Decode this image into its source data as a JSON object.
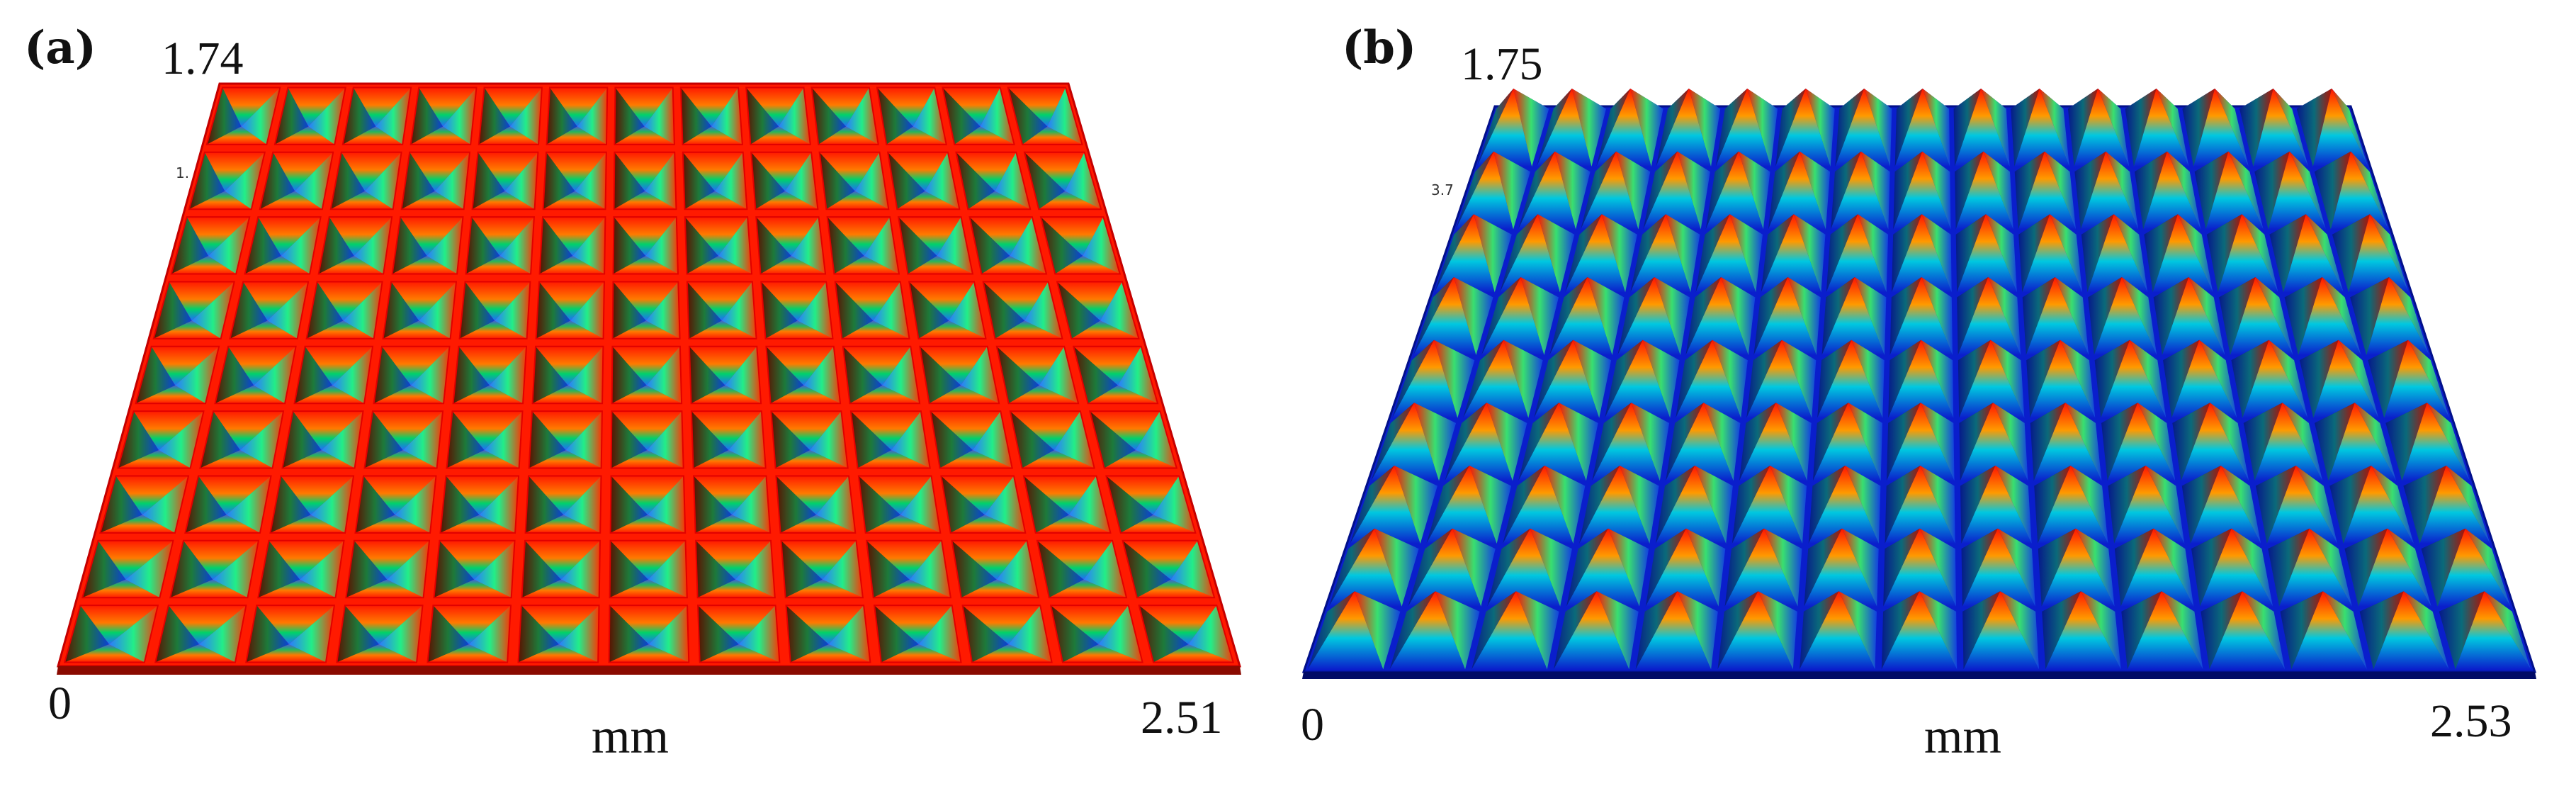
{
  "panels": [
    {
      "label": "(a)",
      "z_max": "1.74",
      "x_min": "0",
      "x_max": "2.51",
      "unit": "mm",
      "tiny_tick": "1.",
      "structure": "inverted-pyramid pits",
      "colors": {
        "base": "#ff1a00",
        "mid": "#00d26a",
        "deep": "#1e6bff"
      },
      "grid": {
        "cols": 13,
        "rows": 9
      }
    },
    {
      "label": "(b)",
      "z_max": "1.75",
      "x_min": "0",
      "x_max": "2.53",
      "unit": "mm",
      "tiny_tick": "3.7",
      "structure": "pyramid peaks",
      "colors": {
        "base": "#0a1ecc",
        "mid": "#00c8e0",
        "peak": "#ff1400"
      },
      "grid": {
        "cols": 15,
        "rows": 9
      }
    }
  ]
}
